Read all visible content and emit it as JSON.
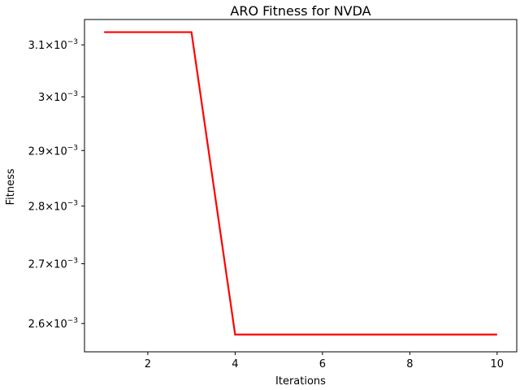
{
  "chart_data": {
    "type": "line",
    "title": "ARO Fitness for NVDA",
    "xlabel": "Iterations",
    "ylabel": "Fitness",
    "yscale": "log",
    "grid": false,
    "x": [
      1,
      2,
      3,
      4,
      5,
      6,
      7,
      8,
      9,
      10
    ],
    "series": [
      {
        "color": "#ff0000",
        "values": [
          0.003125,
          0.003125,
          0.003125,
          0.002582,
          0.002582,
          0.002582,
          0.002582,
          0.002582,
          0.002582,
          0.002582
        ]
      }
    ],
    "xlim": [
      0.55,
      10.45
    ],
    "ylim": [
      0.002554,
      0.00315
    ],
    "xticks": [
      {
        "value": 2,
        "label": "2"
      },
      {
        "value": 4,
        "label": "4"
      },
      {
        "value": 6,
        "label": "6"
      },
      {
        "value": 8,
        "label": "8"
      },
      {
        "value": 10,
        "label": "10"
      }
    ],
    "yticks": [
      {
        "value": 0.0026,
        "mantissa": "2.6",
        "base": "10",
        "exp": "−3"
      },
      {
        "value": 0.0027,
        "mantissa": "2.7",
        "base": "10",
        "exp": "−3"
      },
      {
        "value": 0.0028,
        "mantissa": "2.8",
        "base": "10",
        "exp": "−3"
      },
      {
        "value": 0.0029,
        "mantissa": "2.9",
        "base": "10",
        "exp": "−3"
      },
      {
        "value": 0.003,
        "mantissa": "3",
        "base": "10",
        "exp": "−3"
      },
      {
        "value": 0.0031,
        "mantissa": "3.1",
        "base": "10",
        "exp": "−3"
      }
    ]
  }
}
